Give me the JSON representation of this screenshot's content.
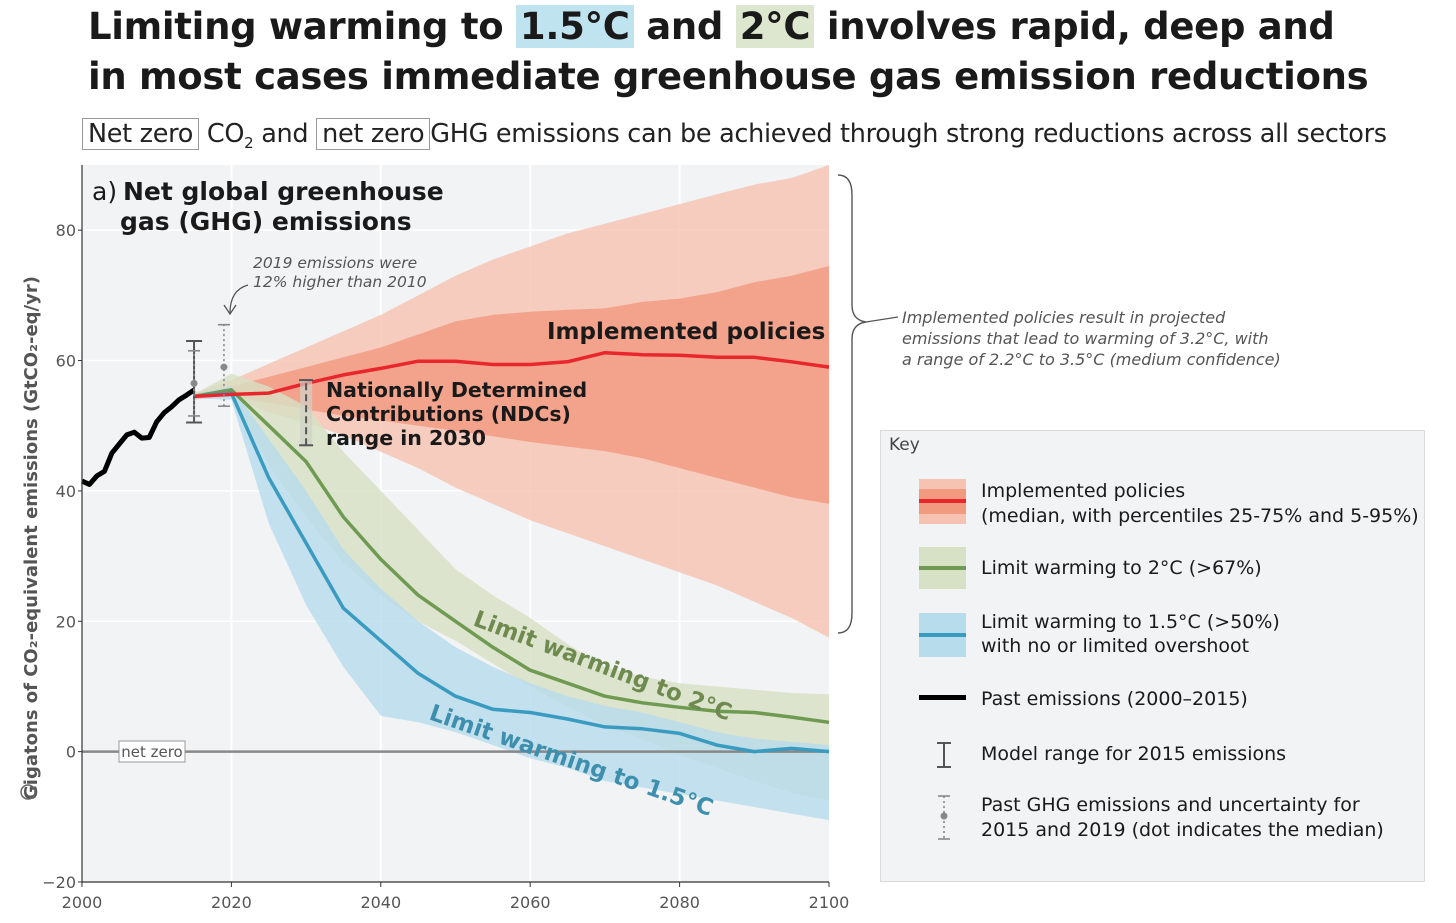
{
  "headline": {
    "part1": "Limiting warming to",
    "hl_15": "1.5°C",
    "and": "and",
    "hl_2": "2°C",
    "part2": "involves rapid, deep and",
    "line2": "in most cases immediate greenhouse gas emission reductions"
  },
  "subtitle": {
    "netzero_co2": "Net zero",
    "co2": "CO",
    "co2_sub": "2",
    "and": "and",
    "netzero_ghg": "net zero",
    "rest": "GHG emissions can be achieved through strong reductions across all sectors"
  },
  "colors": {
    "implemented_line": "#e8262b",
    "implemented_outer": "#f6c3b3",
    "implemented_inner": "#f19a80",
    "two_line": "#6f9a52",
    "two_band": "#d7e1c5",
    "one5_line": "#3a9bc1",
    "one5_band": "#b7dcec",
    "past": "#000000",
    "netzero": "#888888",
    "background": "#f1f3f5"
  },
  "chart_data": {
    "type": "area",
    "panel_title_prefix": "a)",
    "title_line1": "Net global greenhouse",
    "title_line2": "gas (GHG) emissions",
    "ylabel": "Gigatons of CO₂-equivalent emissions (GtCO₂-eq/yr)",
    "xlabel": "",
    "xlim": [
      2000,
      2100
    ],
    "ylim": [
      -20,
      90
    ],
    "xticks": [
      2000,
      2020,
      2040,
      2060,
      2080,
      2100
    ],
    "yticks": [
      -20,
      0,
      20,
      40,
      60,
      80
    ],
    "grid": true,
    "series": [
      {
        "name": "Past emissions (2000–2015)",
        "x": [
          2000,
          2001,
          2002,
          2003,
          2004,
          2005,
          2006,
          2007,
          2008,
          2009,
          2010,
          2011,
          2012,
          2013,
          2014,
          2015
        ],
        "values": [
          41.5,
          41,
          42.3,
          43,
          45.8,
          47.2,
          48.6,
          49,
          48.1,
          48.2,
          50.6,
          52,
          52.9,
          54,
          54.7,
          55.5
        ]
      },
      {
        "name": "Implemented policies",
        "x": [
          2015,
          2020,
          2025,
          2030,
          2035,
          2040,
          2045,
          2050,
          2055,
          2060,
          2065,
          2070,
          2075,
          2080,
          2085,
          2090,
          2095,
          2100
        ],
        "median": [
          54.5,
          54.8,
          55,
          56.5,
          57.8,
          58.8,
          59.9,
          59.9,
          59.4,
          59.4,
          59.8,
          61.2,
          60.9,
          60.8,
          60.5,
          60.5,
          59.8,
          59
        ],
        "p25": [
          54.2,
          54.5,
          53.5,
          52.5,
          51.5,
          50.8,
          50,
          49.2,
          48.4,
          47.5,
          46.8,
          46.1,
          45,
          43.5,
          42,
          40.5,
          39,
          38
        ],
        "p75": [
          54.8,
          56,
          57.5,
          59,
          60.5,
          62,
          64,
          66,
          67,
          67.5,
          67.8,
          68,
          69,
          69.5,
          70.5,
          72,
          73,
          74.5
        ],
        "p5": [
          54,
          54.5,
          52,
          50.5,
          48.5,
          46,
          43.5,
          40.5,
          38,
          35.5,
          33.5,
          31.5,
          29.5,
          27.5,
          25.5,
          23,
          20.5,
          17.5
        ],
        "p95": [
          55,
          57,
          59.5,
          62,
          64.5,
          67,
          70,
          73,
          75.5,
          77.5,
          79.5,
          81,
          82.5,
          84,
          85.5,
          87,
          88,
          90
        ]
      },
      {
        "name": "Limit warming to 2°C",
        "x": [
          2015,
          2020,
          2025,
          2030,
          2035,
          2040,
          2045,
          2050,
          2055,
          2060,
          2065,
          2070,
          2075,
          2080,
          2085,
          2090,
          2095,
          2100
        ],
        "median": [
          54.5,
          55.5,
          50,
          44.5,
          36,
          29.5,
          24,
          20,
          16,
          12.5,
          10.5,
          8.5,
          7.5,
          6.8,
          6.2,
          6,
          5.3,
          4.5
        ],
        "p5": [
          54.2,
          55,
          44,
          36,
          29,
          24,
          20,
          17,
          13.5,
          10,
          7,
          4,
          2,
          -0.5,
          -2.5,
          -4.5,
          -6.3,
          -7.5
        ],
        "p95": [
          54.8,
          58,
          56,
          53,
          46,
          40,
          34,
          28,
          24,
          20.5,
          16.5,
          13,
          11.5,
          10.5,
          10,
          9.5,
          9,
          8.8
        ]
      },
      {
        "name": "Limit warming to 1.5°C",
        "x": [
          2015,
          2020,
          2025,
          2030,
          2035,
          2040,
          2045,
          2050,
          2055,
          2060,
          2065,
          2070,
          2075,
          2080,
          2085,
          2090,
          2095,
          2100
        ],
        "median": [
          54.5,
          55,
          42,
          32,
          22,
          17,
          12,
          8.5,
          6.5,
          6,
          5,
          3.8,
          3.5,
          2.8,
          1,
          0,
          0.5,
          0
        ],
        "p5": [
          54.2,
          54,
          35,
          22.5,
          13,
          5.5,
          4.5,
          3,
          1,
          -1,
          -2.5,
          -4.5,
          -5.5,
          -6.5,
          -7.5,
          -8.5,
          -9.5,
          -10.5
        ],
        "p95": [
          54.8,
          56,
          48,
          40,
          31,
          25,
          20,
          16,
          13,
          10.5,
          8.5,
          7,
          6,
          4.5,
          3,
          2,
          1.5,
          1
        ]
      }
    ],
    "ndc_range_2030": [
      47,
      57
    ],
    "model_range_2015": [
      50.5,
      63
    ],
    "past_uncertainty": [
      {
        "year": 2015,
        "median": 56.5,
        "low": 51.5,
        "high": 61.5
      },
      {
        "year": 2019,
        "median": 59,
        "low": 53,
        "high": 65.5
      }
    ],
    "annotations": {
      "emissions_2019_line1": "2019 emissions were",
      "emissions_2019_line2": "12% higher than 2010",
      "implemented_label": "Implemented policies",
      "ndc_line1": "Nationally Determined",
      "ndc_line2": "Contributions (NDCs)",
      "ndc_line3": "range in 2030",
      "two_label": "Limit warming to 2°C",
      "one5_label": "Limit warming to 1.5°C",
      "net_zero": "net zero",
      "brace_line1": "Implemented policies result in projected",
      "brace_line2": "emissions that lead to warming of 3.2°C, with",
      "brace_line3": "a range of 2.2°C to 3.5°C (medium confidence)"
    }
  },
  "key": {
    "title": "Key",
    "implemented_l1": "Implemented policies",
    "implemented_l2": "(median, with percentiles 25-75% and 5-95%)",
    "two": "Limit warming to 2°C (>67%)",
    "one5_l1": "Limit warming to 1.5°C (>50%)",
    "one5_l2": "with no or limited overshoot",
    "past": "Past emissions (2000–2015)",
    "model_range": "Model range for 2015 emissions",
    "uncert_l1": "Past GHG emissions and uncertainty for",
    "uncert_l2": "2015 and 2019 (dot indicates the median)"
  }
}
